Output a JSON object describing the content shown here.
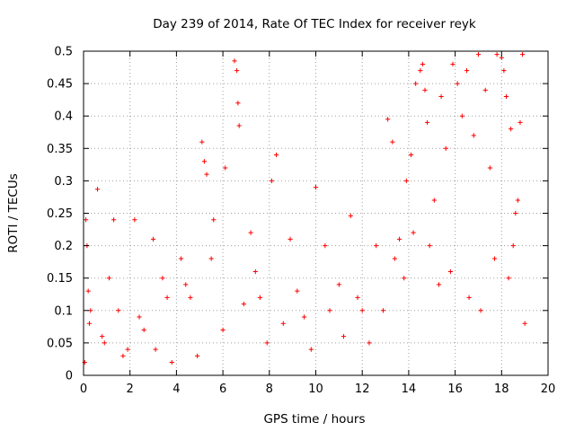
{
  "chart_data": {
    "type": "scatter",
    "title": "Day 239 of 2014, Rate Of TEC Index for receiver reyk",
    "xlabel": "GPS time / hours",
    "ylabel": "ROTI / TECUs",
    "xlim": [
      0,
      20
    ],
    "ylim": [
      0,
      0.5
    ],
    "x_ticks": [
      0,
      2,
      4,
      6,
      8,
      10,
      12,
      14,
      16,
      18,
      20
    ],
    "x_tick_labels": [
      "0",
      "2",
      "4",
      "6",
      "8",
      "10",
      "12",
      "14",
      "16",
      "18",
      "20"
    ],
    "y_ticks": [
      0,
      0.05,
      0.1,
      0.15,
      0.2,
      0.25,
      0.3,
      0.35,
      0.4,
      0.45,
      0.5
    ],
    "y_tick_labels": [
      "0",
      "0.05",
      "0.1",
      "0.15",
      "0.2",
      "0.25",
      "0.3",
      "0.35",
      "0.4",
      "0.45",
      "0.5"
    ],
    "grid": true,
    "marker": "+",
    "color": "#ff0000",
    "series": [
      {
        "name": "ROTI",
        "x": [
          0.05,
          0.1,
          0.15,
          0.2,
          0.25,
          0.6,
          0.9,
          1.3,
          1.5,
          1.9,
          2.2,
          2.6,
          3.0,
          3.4,
          3.8,
          4.2,
          4.6,
          5.1,
          5.2,
          5.3,
          5.6,
          6.1,
          6.5,
          6.6,
          6.65,
          6.7,
          7.2,
          7.6,
          8.1,
          8.3,
          8.9,
          9.5,
          10.0,
          10.4,
          11.0,
          11.5,
          12.0,
          12.6,
          13.1,
          13.3,
          13.6,
          13.9,
          14.1,
          14.3,
          14.5,
          14.6,
          14.7,
          14.8,
          15.1,
          15.4,
          15.6,
          15.9,
          16.1,
          16.3,
          16.5,
          16.8,
          17.0,
          17.3,
          17.5,
          17.8,
          18.0,
          18.1,
          18.2,
          18.4,
          18.6,
          18.7,
          18.8,
          18.9,
          19.0,
          0.3,
          0.8,
          1.1,
          1.7,
          2.4,
          3.1,
          3.6,
          4.4,
          4.9,
          5.5,
          6.0,
          6.9,
          7.4,
          7.9,
          8.6,
          9.2,
          9.8,
          10.6,
          11.2,
          11.8,
          12.3,
          12.9,
          13.4,
          13.8,
          14.2,
          14.9,
          15.3,
          15.8,
          16.6,
          17.1,
          17.7,
          18.3,
          18.5
        ],
        "y": [
          0.02,
          0.24,
          0.2,
          0.13,
          0.08,
          0.287,
          0.05,
          0.24,
          0.1,
          0.04,
          0.24,
          0.07,
          0.21,
          0.15,
          0.02,
          0.18,
          0.12,
          0.36,
          0.33,
          0.31,
          0.24,
          0.32,
          0.485,
          0.47,
          0.42,
          0.385,
          0.22,
          0.12,
          0.3,
          0.34,
          0.21,
          0.09,
          0.29,
          0.2,
          0.14,
          0.246,
          0.1,
          0.2,
          0.395,
          0.36,
          0.21,
          0.3,
          0.34,
          0.45,
          0.47,
          0.48,
          0.44,
          0.39,
          0.27,
          0.43,
          0.35,
          0.48,
          0.45,
          0.4,
          0.47,
          0.37,
          0.495,
          0.44,
          0.32,
          0.495,
          0.49,
          0.47,
          0.43,
          0.38,
          0.25,
          0.27,
          0.39,
          0.495,
          0.08,
          0.1,
          0.06,
          0.15,
          0.03,
          0.09,
          0.04,
          0.12,
          0.14,
          0.03,
          0.18,
          0.07,
          0.11,
          0.16,
          0.05,
          0.08,
          0.13,
          0.04,
          0.1,
          0.06,
          0.12,
          0.05,
          0.1,
          0.18,
          0.15,
          0.22,
          0.2,
          0.14,
          0.16,
          0.12,
          0.1,
          0.18,
          0.15,
          0.2
        ]
      }
    ]
  }
}
